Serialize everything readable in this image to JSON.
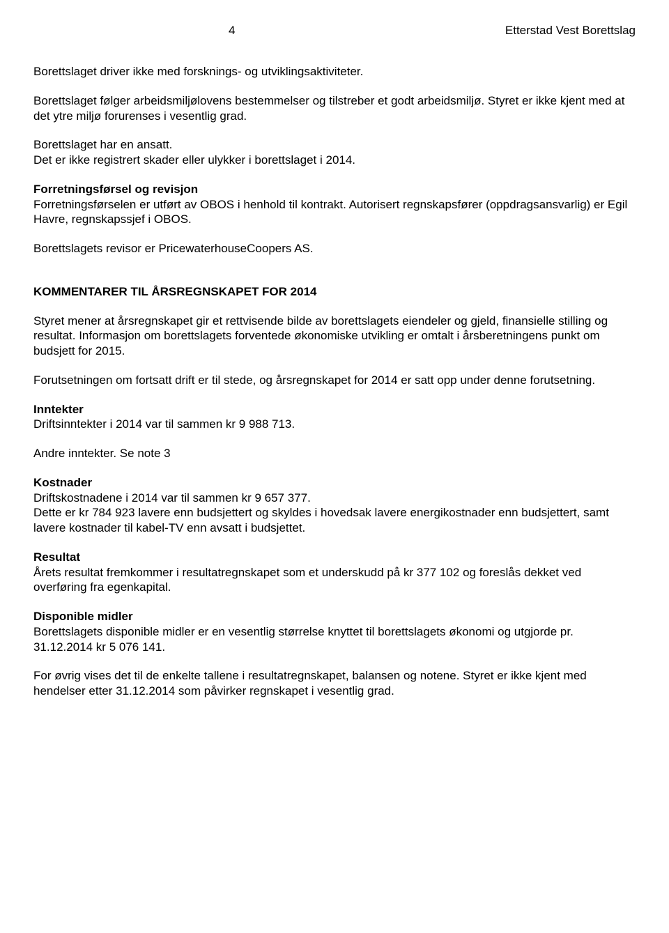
{
  "header": {
    "pageNumber": "4",
    "docTitle": "Etterstad Vest Borettslag"
  },
  "body": {
    "p1": "Borettslaget driver ikke med forsknings- og utviklingsaktiviteter.",
    "p2": "Borettslaget følger arbeidsmiljølovens bestemmelser og tilstreber et godt arbeidsmiljø. Styret er ikke kjent med at det ytre miljø forurenses i vesentlig grad.",
    "p3": "Borettslaget har en ansatt.",
    "p4": "Det er ikke registrert skader eller ulykker i borettslaget i 2014.",
    "h1": "Forretningsførsel og revisjon",
    "p5": "Forretningsførselen er utført av OBOS i henhold til kontrakt. Autorisert regnskapsfører (oppdragsansvarlig) er Egil Havre, regnskapssjef i OBOS.",
    "p6": "Borettslagets revisor er PricewaterhouseCoopers AS.",
    "h2": "KOMMENTARER TIL ÅRSREGNSKAPET FOR 2014",
    "p7": "Styret mener at årsregnskapet gir et rettvisende bilde av borettslagets eiendeler og gjeld, finansielle stilling og resultat. Informasjon om borettslagets forventede økonomiske utvikling er omtalt i årsberetningens punkt om budsjett for 2015.",
    "p8": "Forutsetningen om fortsatt drift er til stede, og årsregnskapet for 2014 er satt opp under denne forutsetning.",
    "h3": "Inntekter",
    "p9": "Driftsinntekter i 2014 var til sammen kr 9 988 713.",
    "p10": "Andre inntekter. Se note 3",
    "h4": "Kostnader",
    "p11": "Driftskostnadene i 2014 var til sammen kr 9 657 377.",
    "p12": "Dette er kr 784 923 lavere enn budsjettert og skyldes i hovedsak lavere energikostnader enn budsjettert, samt lavere kostnader til kabel-TV enn avsatt i budsjettet.",
    "h5": "Resultat",
    "p13": "Årets resultat fremkommer i resultatregnskapet som et underskudd på kr 377 102 og foreslås dekket ved overføring fra egenkapital.",
    "h6": "Disponible midler",
    "p14": "Borettslagets disponible midler er en vesentlig størrelse knyttet til borettslagets økonomi og utgjorde pr. 31.12.2014 kr 5 076 141.",
    "p15": "For øvrig vises det til de enkelte tallene i resultatregnskapet, balansen og notene. Styret er ikke kjent med hendelser etter 31.12.2014 som påvirker regnskapet i vesentlig grad."
  }
}
